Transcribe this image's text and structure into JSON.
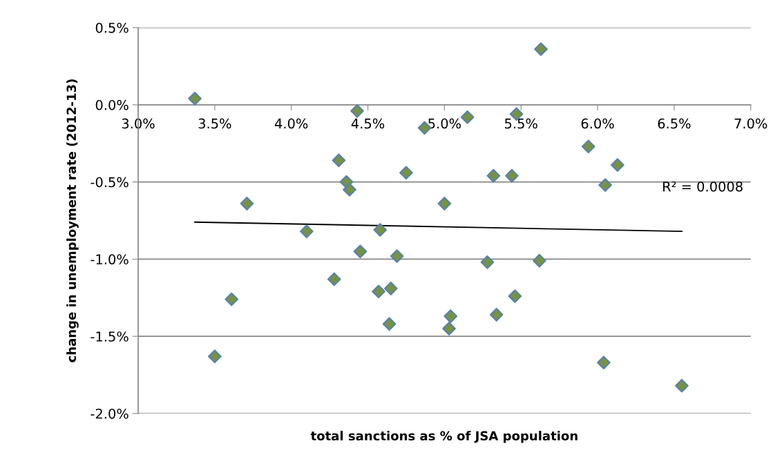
{
  "chart_data": {
    "type": "scatter",
    "xlabel": "total sanctions as % of JSA population",
    "ylabel": "change in unemployment rate (2012-13)",
    "series": [
      {
        "color": "#77933c",
        "marker": "diamond",
        "x": [
          3.37,
          4.43,
          4.87,
          4.31,
          4.75,
          4.36,
          4.38,
          3.71,
          5.0,
          4.1,
          4.58,
          4.45,
          4.69,
          4.28,
          4.57,
          4.65,
          3.61,
          4.64,
          5.04,
          5.03,
          3.5,
          5.63,
          5.15,
          5.47,
          5.94,
          6.13,
          5.32,
          5.44,
          6.05,
          5.28,
          5.62,
          5.46,
          5.34,
          6.04,
          6.55
        ],
        "values": [
          0.04,
          -0.04,
          -0.15,
          -0.36,
          -0.44,
          -0.5,
          -0.55,
          -0.64,
          -0.64,
          -0.82,
          -0.81,
          -0.95,
          -0.98,
          -1.13,
          -1.21,
          -1.19,
          -1.26,
          -1.42,
          -1.37,
          -1.45,
          -1.63,
          0.36,
          -0.08,
          -0.06,
          -0.27,
          -0.39,
          -0.46,
          -0.46,
          -0.52,
          -1.02,
          -1.01,
          -1.24,
          -1.36,
          -1.67,
          -1.82
        ]
      },
      {
        "type": "line",
        "color": "#000000",
        "marker": "none",
        "line_style": "solid",
        "x": [
          3.37,
          6.55
        ],
        "values": [
          -0.76,
          -0.82
        ]
      }
    ],
    "annotations": [
      "R² = 0.0008"
    ],
    "xlim": [
      3.0,
      7.0
    ],
    "xticks": [
      {
        "value": 3.0,
        "label": "3.0%"
      },
      {
        "value": 3.5,
        "label": "3.5%"
      },
      {
        "value": 4.0,
        "label": "4.0%"
      },
      {
        "value": 4.5,
        "label": "4.5%"
      },
      {
        "value": 5.0,
        "label": "5.0%"
      },
      {
        "value": 5.5,
        "label": "5.5%"
      },
      {
        "value": 6.0,
        "label": "6.0%"
      },
      {
        "value": 6.5,
        "label": "6.5%"
      },
      {
        "value": 7.0,
        "label": "7.0%"
      }
    ],
    "ylim": [
      -2.0,
      0.5
    ],
    "yticks": [
      {
        "value": -2.0,
        "label": "-2.0%"
      },
      {
        "value": -1.5,
        "label": "-1.5%"
      },
      {
        "value": -1.0,
        "label": "-1.0%"
      },
      {
        "value": -0.5,
        "label": "-0.5%"
      },
      {
        "value": 0.0,
        "label": "0.0%"
      },
      {
        "value": 0.5,
        "label": "0.5%"
      }
    ],
    "grid": "y",
    "legend": false
  }
}
